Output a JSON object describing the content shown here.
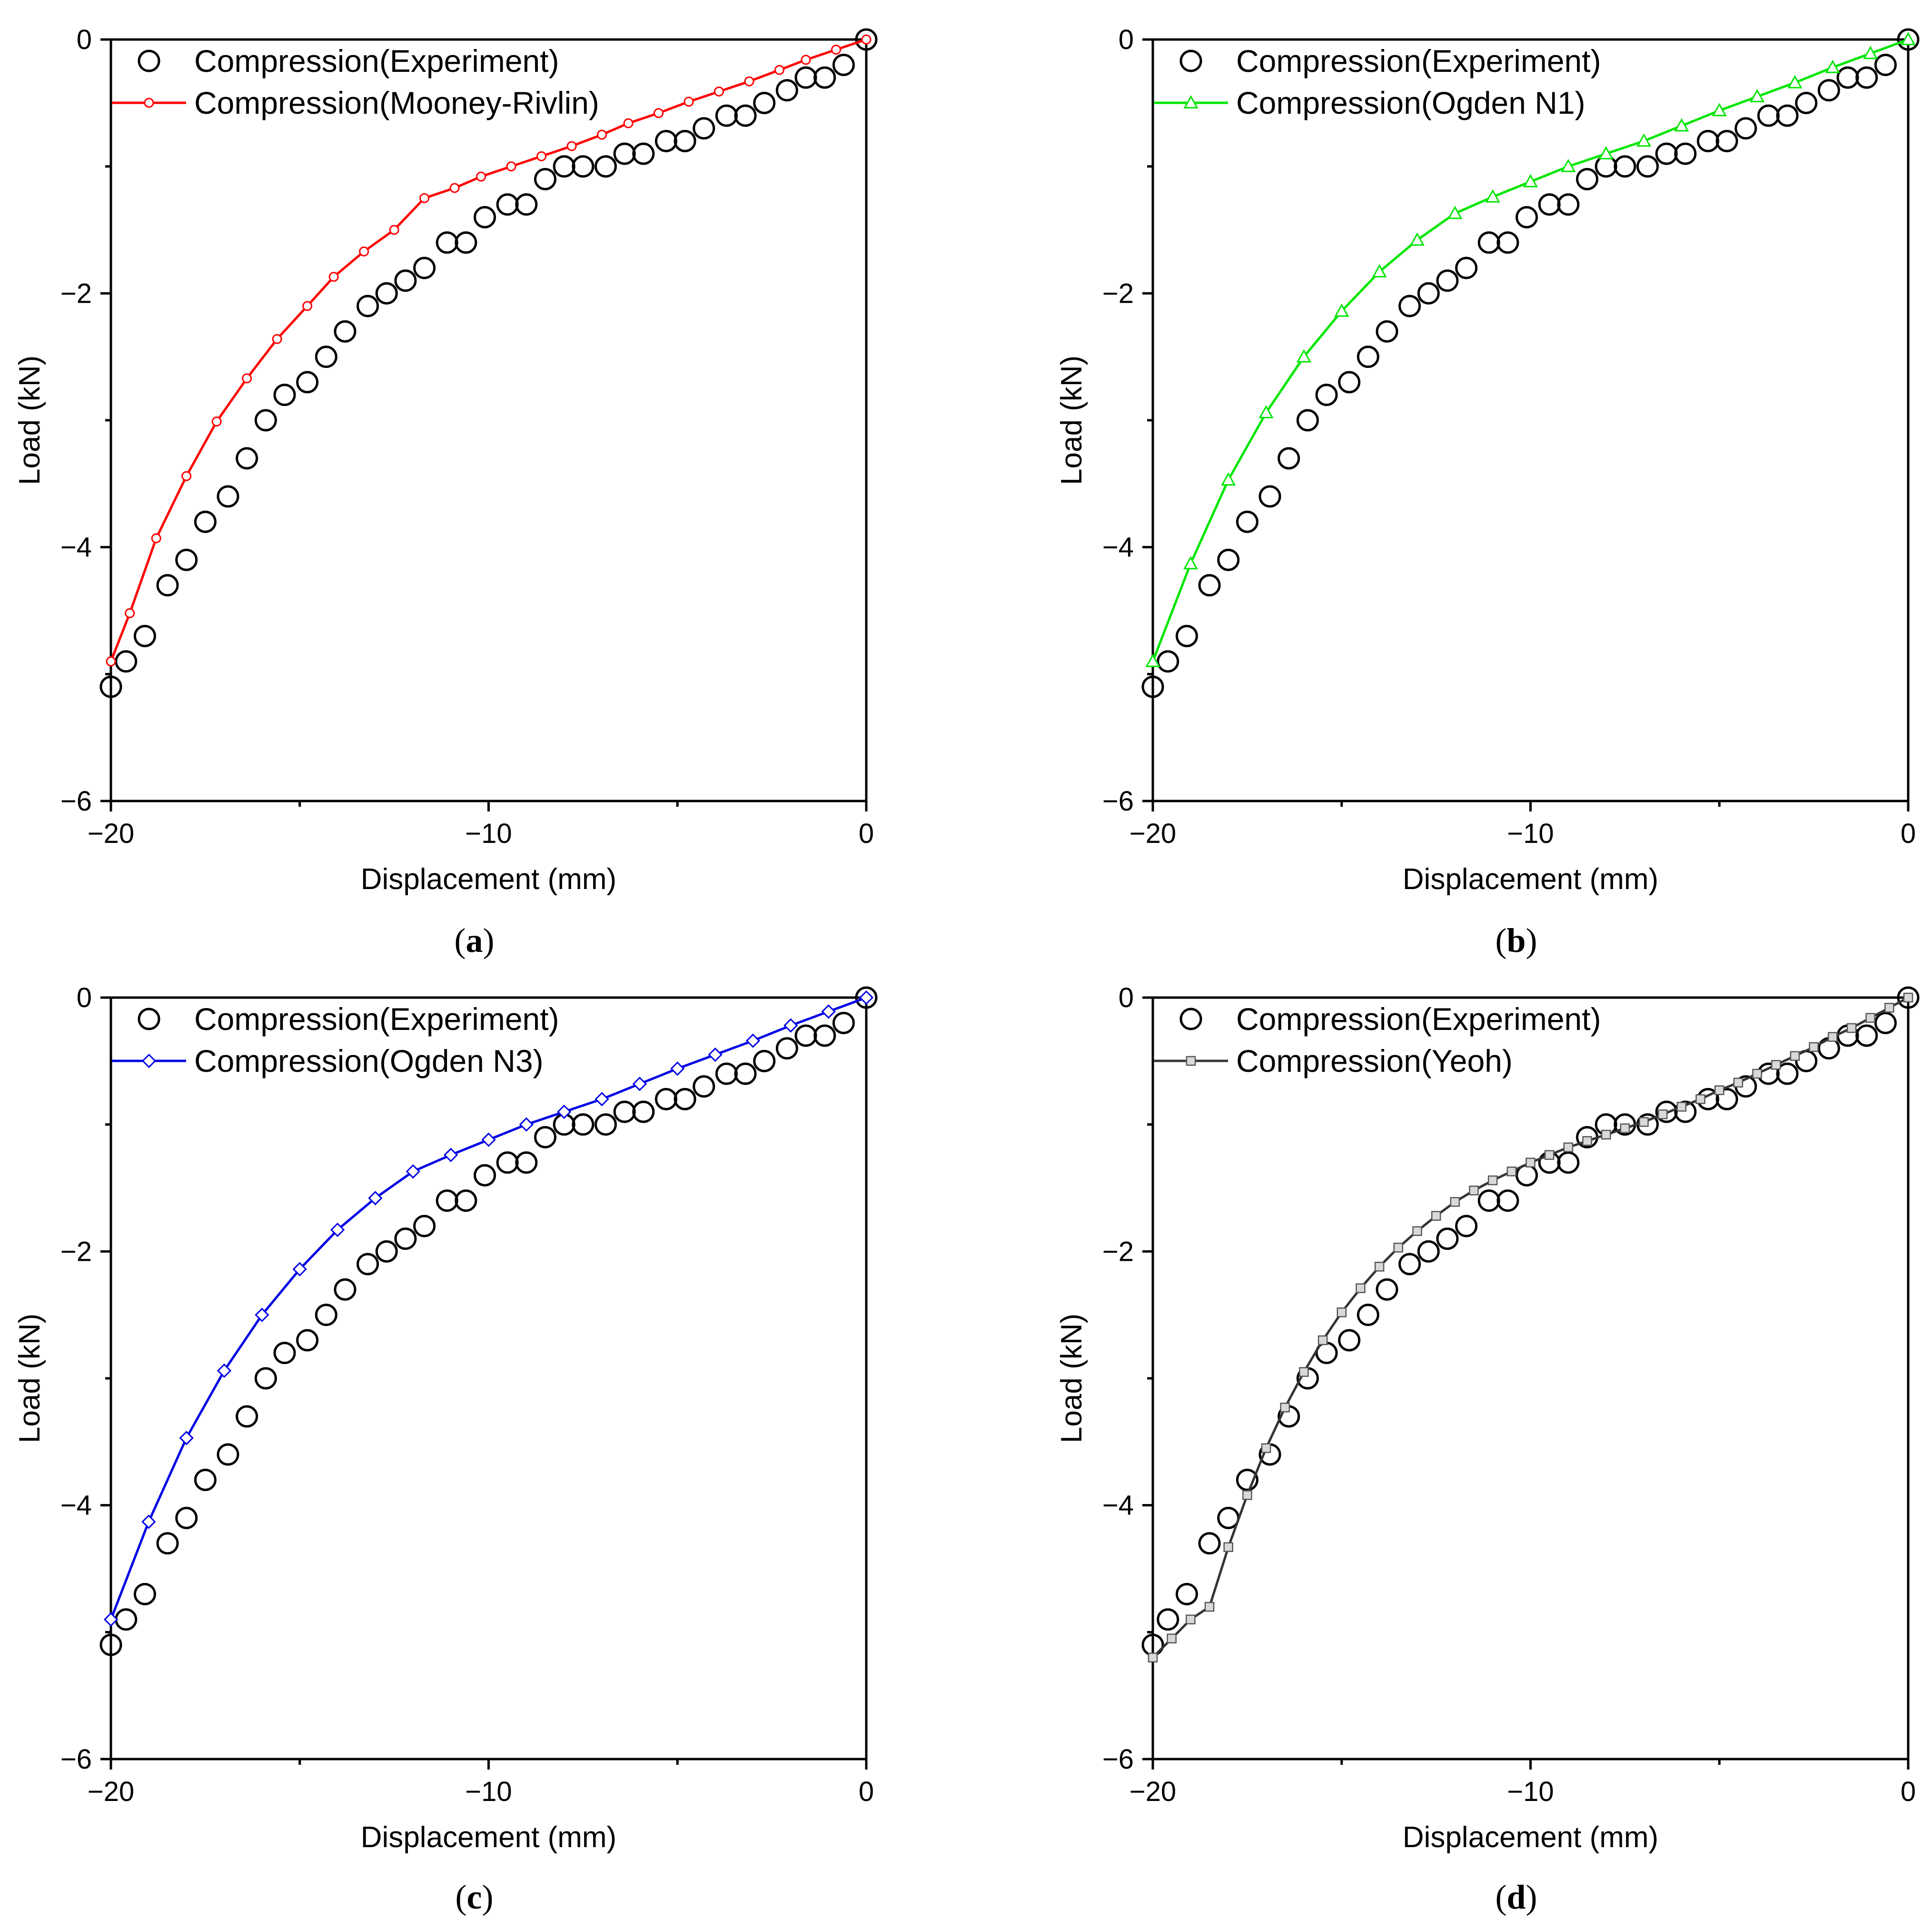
{
  "chart_data": [
    {
      "panel": "a",
      "type": "line",
      "xlabel": "Displacement (mm)",
      "ylabel": "Load (kN)",
      "xlim": [
        -20,
        0
      ],
      "ylim": [
        -6,
        0
      ],
      "xticks": [
        -20,
        -10,
        0
      ],
      "xtick_labels": [
        "−20",
        "−10",
        "0"
      ],
      "yticks": [
        0,
        -2,
        -4,
        -6
      ],
      "ytick_labels": [
        "0",
        "−2",
        "−4",
        "−6"
      ],
      "panel_label": "a",
      "series": [
        {
          "name": "Compression(Experiment)",
          "style": "markers",
          "marker": "circle-open",
          "color": "#000000",
          "x": [
            0,
            -0.6,
            -1.1,
            -1.6,
            -2.1,
            -2.7,
            -3.2,
            -3.7,
            -4.3,
            -4.8,
            -5.3,
            -5.9,
            -6.4,
            -6.9,
            -7.5,
            -8.0,
            -8.5,
            -9.0,
            -9.5,
            -10.1,
            -10.6,
            -11.1,
            -11.7,
            -12.2,
            -12.7,
            -13.2,
            -13.8,
            -14.3,
            -14.8,
            -15.4,
            -15.9,
            -16.4,
            -16.9,
            -17.5,
            -18.0,
            -18.5,
            -19.1,
            -19.6,
            -20.0
          ],
          "y": [
            0,
            -0.2,
            -0.3,
            -0.3,
            -0.4,
            -0.5,
            -0.6,
            -0.6,
            -0.7,
            -0.8,
            -0.8,
            -0.9,
            -0.9,
            -1.0,
            -1.0,
            -1.0,
            -1.1,
            -1.3,
            -1.3,
            -1.4,
            -1.6,
            -1.6,
            -1.8,
            -1.9,
            -2.0,
            -2.1,
            -2.3,
            -2.5,
            -2.7,
            -2.8,
            -3.0,
            -3.3,
            -3.6,
            -3.8,
            -4.1,
            -4.3,
            -4.7,
            -4.9,
            -5.1
          ]
        },
        {
          "name": "Compression(Mooney-Rivlin)",
          "style": "line-markers",
          "marker": "circle-small-open",
          "color": "#ff0000",
          "x": [
            0,
            -0.8,
            -1.6,
            -2.3,
            -3.1,
            -3.9,
            -4.7,
            -5.5,
            -6.3,
            -7.0,
            -7.8,
            -8.6,
            -9.4,
            -10.2,
            -10.9,
            -11.7,
            -12.5,
            -13.3,
            -14.1,
            -14.8,
            -15.6,
            -16.4,
            -17.2,
            -18.0,
            -18.8,
            -19.5,
            -20.0
          ],
          "y": [
            0,
            -0.08,
            -0.16,
            -0.24,
            -0.33,
            -0.41,
            -0.49,
            -0.58,
            -0.66,
            -0.75,
            -0.84,
            -0.92,
            -1.0,
            -1.08,
            -1.17,
            -1.25,
            -1.5,
            -1.67,
            -1.87,
            -2.1,
            -2.36,
            -2.67,
            -3.01,
            -3.44,
            -3.93,
            -4.52,
            -4.9
          ]
        }
      ]
    },
    {
      "panel": "b",
      "type": "line",
      "xlabel": "Displacement (mm)",
      "ylabel": "Load (kN)",
      "xlim": [
        -20,
        0
      ],
      "ylim": [
        -6,
        0
      ],
      "xticks": [
        -20,
        -10,
        0
      ],
      "xtick_labels": [
        "−20",
        "−10",
        "0"
      ],
      "yticks": [
        0,
        -2,
        -4,
        -6
      ],
      "ytick_labels": [
        "0",
        "−2",
        "−4",
        "−6"
      ],
      "panel_label": "b",
      "series": [
        {
          "name": "Compression(Experiment)",
          "style": "markers",
          "marker": "circle-open",
          "color": "#000000",
          "x": [
            0,
            -0.6,
            -1.1,
            -1.6,
            -2.1,
            -2.7,
            -3.2,
            -3.7,
            -4.3,
            -4.8,
            -5.3,
            -5.9,
            -6.4,
            -6.9,
            -7.5,
            -8.0,
            -8.5,
            -9.0,
            -9.5,
            -10.1,
            -10.6,
            -11.1,
            -11.7,
            -12.2,
            -12.7,
            -13.2,
            -13.8,
            -14.3,
            -14.8,
            -15.4,
            -15.9,
            -16.4,
            -16.9,
            -17.5,
            -18.0,
            -18.5,
            -19.1,
            -19.6,
            -20.0
          ],
          "y": [
            0,
            -0.2,
            -0.3,
            -0.3,
            -0.4,
            -0.5,
            -0.6,
            -0.6,
            -0.7,
            -0.8,
            -0.8,
            -0.9,
            -0.9,
            -1.0,
            -1.0,
            -1.0,
            -1.1,
            -1.3,
            -1.3,
            -1.4,
            -1.6,
            -1.6,
            -1.8,
            -1.9,
            -2.0,
            -2.1,
            -2.3,
            -2.5,
            -2.7,
            -2.8,
            -3.0,
            -3.3,
            -3.6,
            -3.8,
            -4.1,
            -4.3,
            -4.7,
            -4.9,
            -5.1
          ]
        },
        {
          "name": "Compression(Ogden N1)",
          "style": "line-markers",
          "marker": "triangle-open",
          "color": "#00e600",
          "x": [
            0,
            -1.0,
            -2.0,
            -3.0,
            -4.0,
            -5.0,
            -6.0,
            -7.0,
            -8.0,
            -9.0,
            -10.0,
            -11.0,
            -12.0,
            -13.0,
            -14.0,
            -15.0,
            -16.0,
            -17.0,
            -18.0,
            -19.0,
            -20.0
          ],
          "y": [
            0,
            -0.11,
            -0.22,
            -0.34,
            -0.45,
            -0.56,
            -0.68,
            -0.8,
            -0.9,
            -1.0,
            -1.12,
            -1.24,
            -1.37,
            -1.58,
            -1.83,
            -2.14,
            -2.5,
            -2.94,
            -3.47,
            -4.13,
            -4.9
          ]
        }
      ]
    },
    {
      "panel": "c",
      "type": "line",
      "xlabel": "Displacement (mm)",
      "ylabel": "Load (kN)",
      "xlim": [
        -20,
        0
      ],
      "ylim": [
        -6,
        0
      ],
      "xticks": [
        -20,
        -10,
        0
      ],
      "xtick_labels": [
        "−20",
        "−10",
        "0"
      ],
      "yticks": [
        0,
        -2,
        -4,
        -6
      ],
      "ytick_labels": [
        "0",
        "−2",
        "−4",
        "−6"
      ],
      "panel_label": "c",
      "series": [
        {
          "name": "Compression(Experiment)",
          "style": "markers",
          "marker": "circle-open",
          "color": "#000000",
          "x": [
            0,
            -0.6,
            -1.1,
            -1.6,
            -2.1,
            -2.7,
            -3.2,
            -3.7,
            -4.3,
            -4.8,
            -5.3,
            -5.9,
            -6.4,
            -6.9,
            -7.5,
            -8.0,
            -8.5,
            -9.0,
            -9.5,
            -10.1,
            -10.6,
            -11.1,
            -11.7,
            -12.2,
            -12.7,
            -13.2,
            -13.8,
            -14.3,
            -14.8,
            -15.4,
            -15.9,
            -16.4,
            -16.9,
            -17.5,
            -18.0,
            -18.5,
            -19.1,
            -19.6,
            -20.0
          ],
          "y": [
            0,
            -0.2,
            -0.3,
            -0.3,
            -0.4,
            -0.5,
            -0.6,
            -0.6,
            -0.7,
            -0.8,
            -0.8,
            -0.9,
            -0.9,
            -1.0,
            -1.0,
            -1.0,
            -1.1,
            -1.3,
            -1.3,
            -1.4,
            -1.6,
            -1.6,
            -1.8,
            -1.9,
            -2.0,
            -2.1,
            -2.3,
            -2.5,
            -2.7,
            -2.8,
            -3.0,
            -3.3,
            -3.6,
            -3.8,
            -4.1,
            -4.3,
            -4.7,
            -4.9,
            -5.1
          ]
        },
        {
          "name": "Compression(Ogden N3)",
          "style": "line-markers",
          "marker": "diamond-open",
          "color": "#0000e6",
          "x": [
            0,
            -1.0,
            -2.0,
            -3.0,
            -4.0,
            -5.0,
            -6.0,
            -7.0,
            -8.0,
            -9.0,
            -10.0,
            -11.0,
            -12.0,
            -13.0,
            -14.0,
            -15.0,
            -16.0,
            -17.0,
            -18.0,
            -19.0,
            -20.0
          ],
          "y": [
            0,
            -0.11,
            -0.22,
            -0.34,
            -0.45,
            -0.56,
            -0.68,
            -0.8,
            -0.9,
            -1.0,
            -1.12,
            -1.24,
            -1.37,
            -1.58,
            -1.83,
            -2.14,
            -2.5,
            -2.94,
            -3.47,
            -4.13,
            -4.9
          ]
        }
      ]
    },
    {
      "panel": "d",
      "type": "line",
      "xlabel": "Displacement (mm)",
      "ylabel": "Load (kN)",
      "xlim": [
        -20,
        0
      ],
      "ylim": [
        -6,
        0
      ],
      "xticks": [
        -20,
        -10,
        0
      ],
      "xtick_labels": [
        "−20",
        "−10",
        "0"
      ],
      "yticks": [
        0,
        -2,
        -4,
        -6
      ],
      "ytick_labels": [
        "0",
        "−2",
        "−4",
        "−6"
      ],
      "panel_label": "d",
      "series": [
        {
          "name": "Compression(Experiment)",
          "style": "markers",
          "marker": "circle-open",
          "color": "#000000",
          "x": [
            0,
            -0.6,
            -1.1,
            -1.6,
            -2.1,
            -2.7,
            -3.2,
            -3.7,
            -4.3,
            -4.8,
            -5.3,
            -5.9,
            -6.4,
            -6.9,
            -7.5,
            -8.0,
            -8.5,
            -9.0,
            -9.5,
            -10.1,
            -10.6,
            -11.1,
            -11.7,
            -12.2,
            -12.7,
            -13.2,
            -13.8,
            -14.3,
            -14.8,
            -15.4,
            -15.9,
            -16.4,
            -16.9,
            -17.5,
            -18.0,
            -18.5,
            -19.1,
            -19.6,
            -20.0
          ],
          "y": [
            0,
            -0.2,
            -0.3,
            -0.3,
            -0.4,
            -0.5,
            -0.6,
            -0.6,
            -0.7,
            -0.8,
            -0.8,
            -0.9,
            -0.9,
            -1.0,
            -1.0,
            -1.0,
            -1.1,
            -1.3,
            -1.3,
            -1.4,
            -1.6,
            -1.6,
            -1.8,
            -1.9,
            -2.0,
            -2.1,
            -2.3,
            -2.5,
            -2.7,
            -2.8,
            -3.0,
            -3.3,
            -3.6,
            -3.8,
            -4.1,
            -4.3,
            -4.7,
            -4.9,
            -5.1
          ]
        },
        {
          "name": "Compression(Yeoh)",
          "style": "line-markers",
          "marker": "square-open-gray",
          "color": "#333333",
          "marker_fill": "#d9d9d9",
          "x": [
            0,
            -0.5,
            -1.0,
            -1.5,
            -2.0,
            -2.5,
            -3.0,
            -3.5,
            -4.0,
            -4.5,
            -5.0,
            -5.5,
            -6.0,
            -6.5,
            -7.0,
            -7.5,
            -8.0,
            -8.5,
            -9.0,
            -9.5,
            -10.0,
            -10.5,
            -11.0,
            -11.5,
            -12.0,
            -12.5,
            -13.0,
            -13.5,
            -14.0,
            -14.5,
            -15.0,
            -15.5,
            -16.0,
            -16.5,
            -17.0,
            -17.5,
            -18.0,
            -18.5,
            -19.0,
            -19.5,
            -20.0
          ],
          "y": [
            0,
            -0.08,
            -0.16,
            -0.24,
            -0.31,
            -0.39,
            -0.46,
            -0.53,
            -0.6,
            -0.67,
            -0.73,
            -0.8,
            -0.86,
            -0.92,
            -0.98,
            -1.03,
            -1.08,
            -1.13,
            -1.18,
            -1.24,
            -1.3,
            -1.37,
            -1.44,
            -1.52,
            -1.61,
            -1.72,
            -1.84,
            -1.97,
            -2.12,
            -2.29,
            -2.48,
            -2.7,
            -2.95,
            -3.23,
            -3.55,
            -3.92,
            -4.33,
            -4.8,
            -4.9,
            -5.05,
            -5.2
          ]
        }
      ]
    }
  ],
  "colors": {
    "axis": "#000000",
    "experiment": "#000000",
    "mooney_rivlin": "#ff0000",
    "ogden_n1": "#00e600",
    "ogden_n3": "#0000e6",
    "yeoh": "#333333"
  }
}
